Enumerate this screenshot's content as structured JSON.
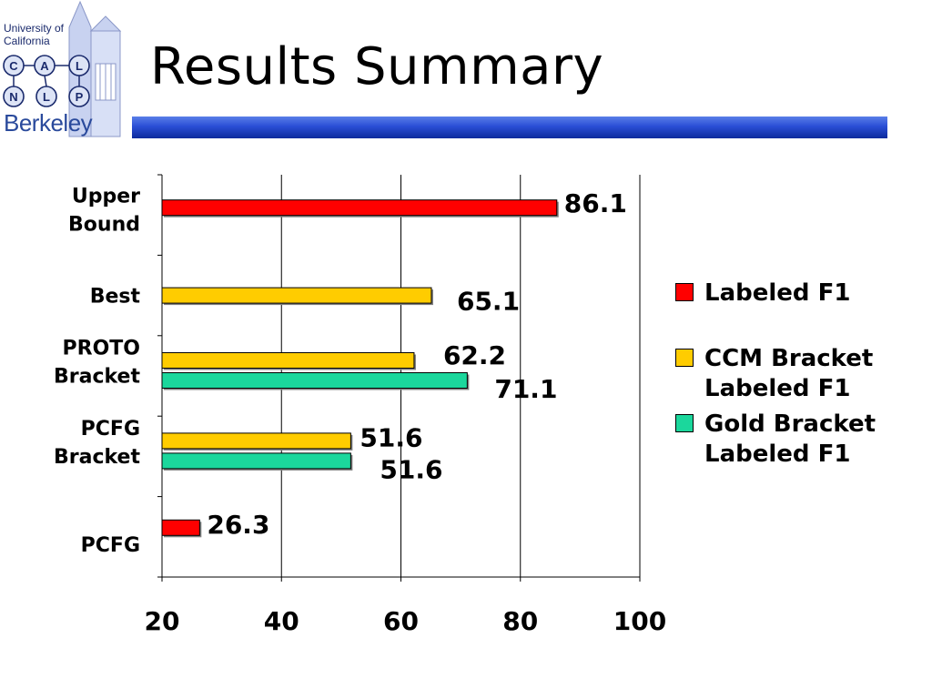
{
  "logo": {
    "line1": "University of",
    "line2": "California",
    "nodes": [
      "C",
      "A",
      "L",
      "N",
      "L",
      "P"
    ],
    "wordmark": "Berkeley"
  },
  "slide": {
    "title": "Results Summary"
  },
  "colors": {
    "labeled_f1": "#ff0000",
    "ccm_bracket": "#ffcc00",
    "gold_bracket": "#1bd79c",
    "title_bar": "#1f44c8"
  },
  "chart_data": {
    "type": "bar",
    "orientation": "horizontal",
    "categories": [
      "Upper\nBound",
      "Best",
      "PROTO\nBracket",
      "PCFG\nBracket",
      "PCFG"
    ],
    "series": [
      {
        "name": "Labeled F1",
        "color": "#ff0000",
        "values": [
          86.1,
          null,
          null,
          null,
          26.3
        ]
      },
      {
        "name": "CCM Bracket\nLabeled F1",
        "color": "#ffcc00",
        "values": [
          null,
          65.1,
          62.2,
          51.6,
          null
        ]
      },
      {
        "name": "Gold Bracket\nLabeled F1",
        "color": "#1bd79c",
        "values": [
          null,
          null,
          71.1,
          51.6,
          null
        ]
      }
    ],
    "data_labels": [
      "86.1",
      "65.1",
      "62.2",
      "71.1",
      "51.6",
      "51.6",
      "26.3"
    ],
    "xticks": [
      "20",
      "40",
      "60",
      "80",
      "100"
    ],
    "xlim": [
      20,
      100
    ],
    "grid": "vertical",
    "legend_position": "right",
    "xlabel": "",
    "ylabel": ""
  }
}
